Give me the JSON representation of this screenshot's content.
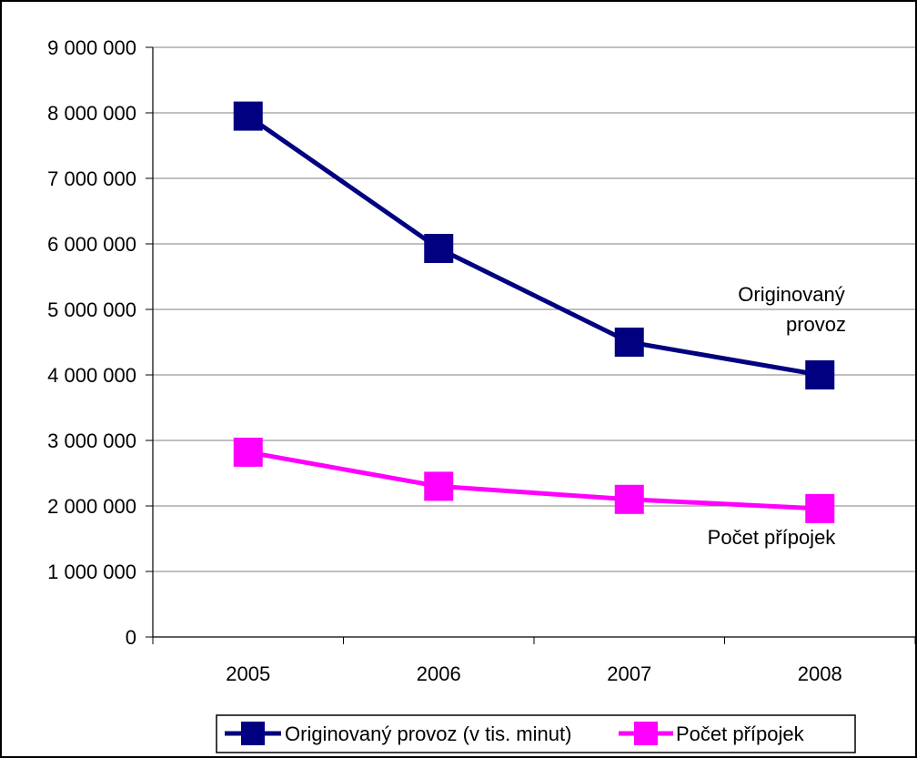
{
  "chart_data": {
    "type": "line",
    "categories": [
      "2005",
      "2006",
      "2007",
      "2008"
    ],
    "ylim": [
      0,
      9000000
    ],
    "yticks": [
      0,
      1000000,
      2000000,
      3000000,
      4000000,
      5000000,
      6000000,
      7000000,
      8000000,
      9000000
    ],
    "ytick_labels": [
      "0",
      "1 000 000",
      "2 000 000",
      "3 000 000",
      "4 000 000",
      "5 000 000",
      "6 000 000",
      "7 000 000",
      "8 000 000",
      "9 000 000"
    ],
    "grid": "horizontal",
    "legend_position": "bottom",
    "series": [
      {
        "name": "Originovaný provoz (v tis. minut)",
        "color": "#000080",
        "values": [
          7950000,
          5930000,
          4500000,
          4000000
        ],
        "annotation": [
          "Originovaný",
          "provoz"
        ]
      },
      {
        "name": "Počet přípojek",
        "color": "#FF00FF",
        "values": [
          2820000,
          2300000,
          2100000,
          1960000
        ],
        "annotation": [
          "Počet přípojek"
        ]
      }
    ]
  }
}
